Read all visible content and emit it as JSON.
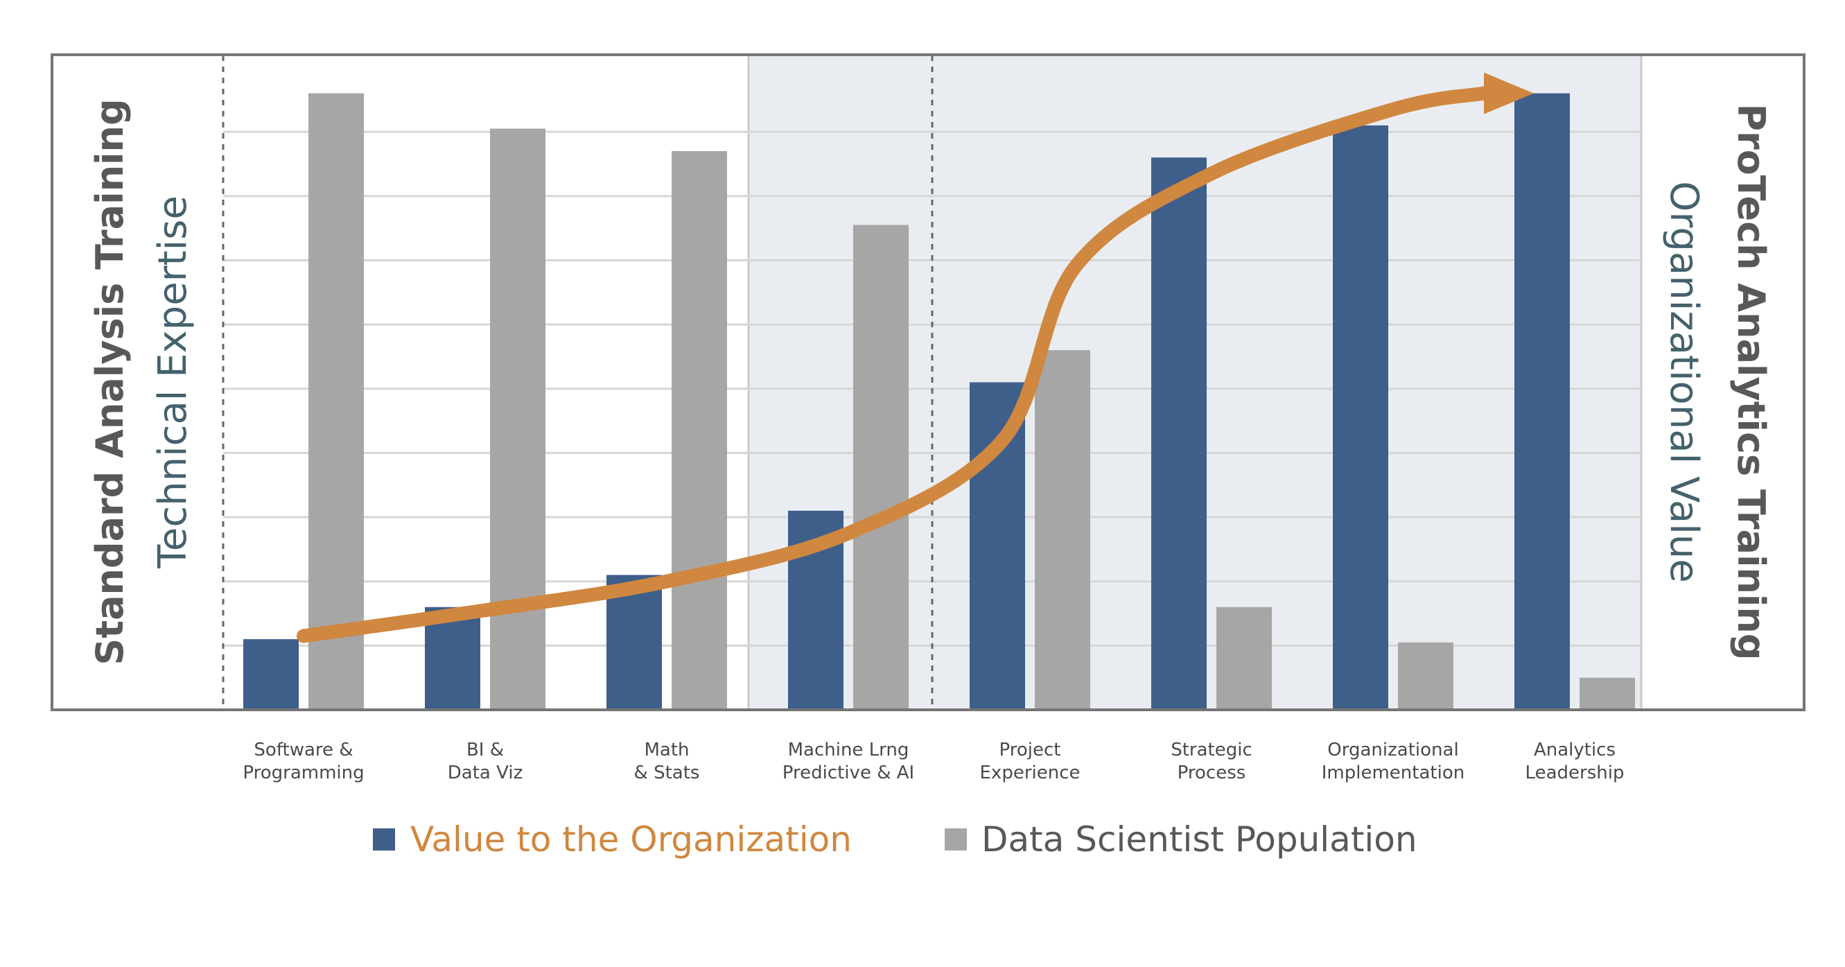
{
  "chart_data": {
    "type": "bar",
    "categories": [
      [
        "Software &",
        "Programming"
      ],
      [
        "BI &",
        "Data Viz"
      ],
      [
        "Math",
        "& Stats"
      ],
      [
        "Machine Lrng",
        "Predictive & AI"
      ],
      [
        "Project",
        "Experience"
      ],
      [
        "Strategic",
        "Process"
      ],
      [
        "Organizational",
        "Implementation"
      ],
      [
        "Analytics",
        "Leadership"
      ]
    ],
    "series": [
      {
        "name": "Value to the Organization",
        "color": "#3f5f8b",
        "values": [
          1.1,
          1.6,
          2.1,
          3.1,
          5.1,
          8.6,
          9.1,
          9.6
        ]
      },
      {
        "name": "Data Scientist Population",
        "color": "#a6a6a6",
        "values": [
          9.6,
          9.05,
          8.7,
          7.55,
          5.6,
          1.6,
          1.05,
          0.5
        ]
      }
    ],
    "ylim": [
      0,
      10.2
    ],
    "grid": true,
    "gridlines": 9,
    "trend_curve": {
      "color": "#d0873f",
      "points": [
        [
          0.0,
          1.15
        ],
        [
          1.0,
          1.55
        ],
        [
          2.0,
          2.0
        ],
        [
          3.0,
          2.75
        ],
        [
          3.85,
          4.2
        ],
        [
          4.25,
          6.9
        ],
        [
          5.0,
          8.35
        ],
        [
          6.0,
          9.35
        ],
        [
          6.5,
          9.6
        ]
      ]
    },
    "left_title_1": "Standard Analysis Training",
    "left_title_2": "Technical Expertise",
    "right_title_1": "ProTech Analytics Training",
    "right_title_2": "Organizational Value",
    "colors": {
      "frame": "#757575",
      "shaded_region": "#e9edf2",
      "left_title_1": "#585858",
      "left_title_2": "#44626c",
      "right_title_1": "#585858",
      "right_title_2": "#44626c",
      "legend_1_text": "#d0873f",
      "legend_2_text": "#585858"
    },
    "legend_position": "bottom"
  }
}
